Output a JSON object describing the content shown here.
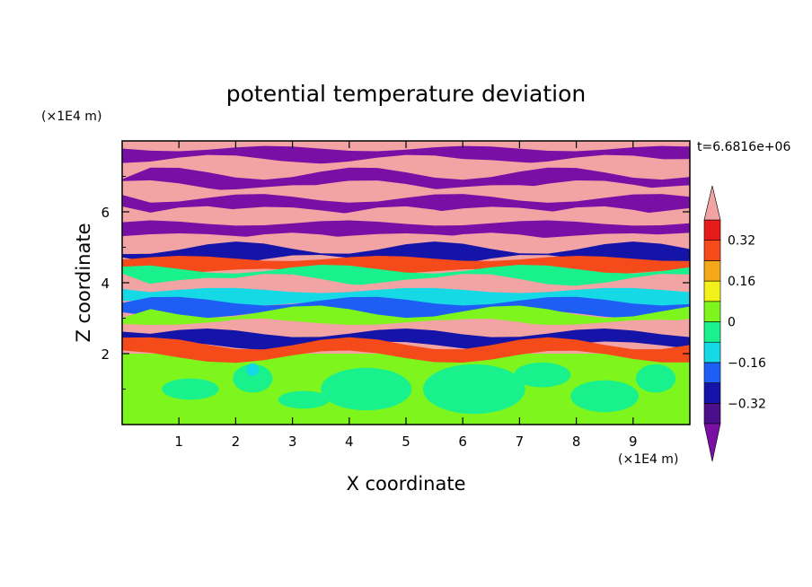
{
  "chart_data": {
    "type": "heatmap",
    "title": "potential temperature deviation",
    "xlabel": "X coordinate",
    "ylabel": "Z coordinate",
    "x_unit": "(×1E4 m)",
    "y_unit": "(×1E4 m)",
    "time_label": "t=6.6816e+06",
    "xlim": [
      0,
      10
    ],
    "ylim": [
      0,
      8
    ],
    "x_ticks": [
      1,
      2,
      3,
      4,
      5,
      6,
      7,
      8,
      9
    ],
    "y_ticks": [
      2,
      4,
      6
    ],
    "colorbar": {
      "levels": [
        -0.4,
        -0.32,
        -0.24,
        -0.16,
        -0.08,
        0,
        0.08,
        0.16,
        0.24,
        0.32,
        0.4
      ],
      "labels": [
        "0.32",
        "0.16",
        "0",
        "-0.16",
        "-0.32"
      ],
      "colors": [
        "#7a0fa6",
        "#4b0f8c",
        "#1414a8",
        "#1e5ef5",
        "#16d9e6",
        "#19f28c",
        "#7ef51c",
        "#f2f21a",
        "#f5a91a",
        "#f54a1a",
        "#e61c1c",
        "#f2a3a3"
      ],
      "extend": "both"
    },
    "lower_layer": {
      "z_top": 2.0,
      "dominant_colors": [
        "#7ef51c",
        "#19f28c",
        "#16d9e6"
      ]
    },
    "upper_bands": [
      {
        "z": 7.6,
        "color": "#7a0fa6"
      },
      {
        "z": 7.3,
        "color": "#f2a3a3"
      },
      {
        "z": 6.9,
        "color": "#7a0fa6"
      },
      {
        "z": 6.5,
        "color": "#f2a3a3"
      },
      {
        "z": 6.2,
        "color": "#7a0fa6"
      },
      {
        "z": 5.8,
        "color": "#f2a3a3"
      },
      {
        "z": 5.5,
        "color": "#7a0fa6"
      },
      {
        "z": 5.1,
        "color": "#f2a3a3"
      },
      {
        "z": 4.8,
        "color": "#1414a8"
      },
      {
        "z": 4.5,
        "color": "#f54a1a"
      },
      {
        "z": 4.2,
        "color": "#19f28c"
      },
      {
        "z": 3.9,
        "color": "#f2a3a3"
      },
      {
        "z": 3.6,
        "color": "#16d9e6"
      },
      {
        "z": 3.3,
        "color": "#1e5ef5"
      },
      {
        "z": 3.0,
        "color": "#7ef51c"
      },
      {
        "z": 2.7,
        "color": "#f2a3a3"
      },
      {
        "z": 2.4,
        "color": "#1414a8"
      },
      {
        "z": 2.1,
        "color": "#f54a1a"
      }
    ]
  }
}
